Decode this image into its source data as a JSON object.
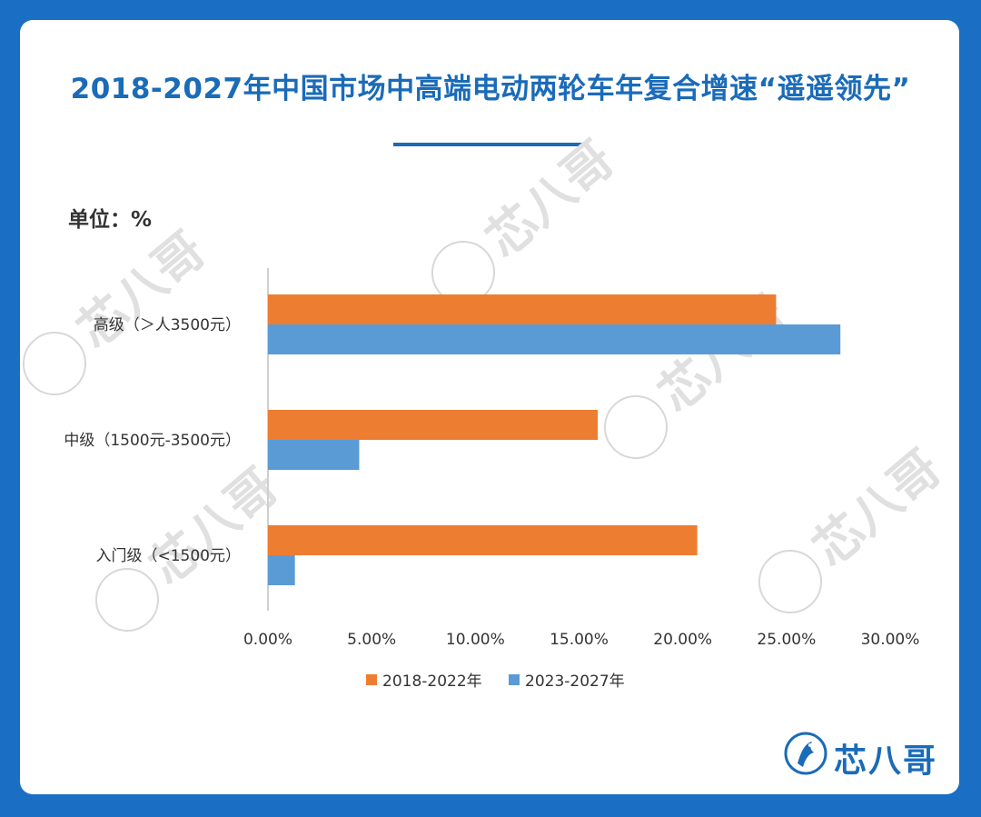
{
  "chart_data": {
    "type": "bar",
    "orientation": "horizontal",
    "title": "2018-2027年中国市场中高端电动两轮车年复合增速“遥遥领先”",
    "unit_label": "单位：%",
    "categories": [
      "高级（＞人3500元）",
      "中级（1500元-3500元）",
      "入门级（<1500元）"
    ],
    "series": [
      {
        "name": "2018-2022年",
        "color": "#ed7d31",
        "values": [
          24.5,
          15.9,
          20.7
        ]
      },
      {
        "name": "2023-2027年",
        "color": "#5b9bd5",
        "values": [
          27.6,
          4.4,
          1.3
        ]
      }
    ],
    "xlim": [
      0,
      30
    ],
    "x_ticks": [
      "0.00%",
      "5.00%",
      "10.00%",
      "15.00%",
      "20.00%",
      "25.00%",
      "30.00%"
    ],
    "x_tick_values": [
      0,
      5,
      10,
      15,
      20,
      25,
      30
    ],
    "grid": false,
    "legend_position": "bottom"
  },
  "watermark": {
    "text": "芯八哥"
  },
  "logo": {
    "text": "芯八哥",
    "icon": "kingfisher-logo-icon"
  }
}
